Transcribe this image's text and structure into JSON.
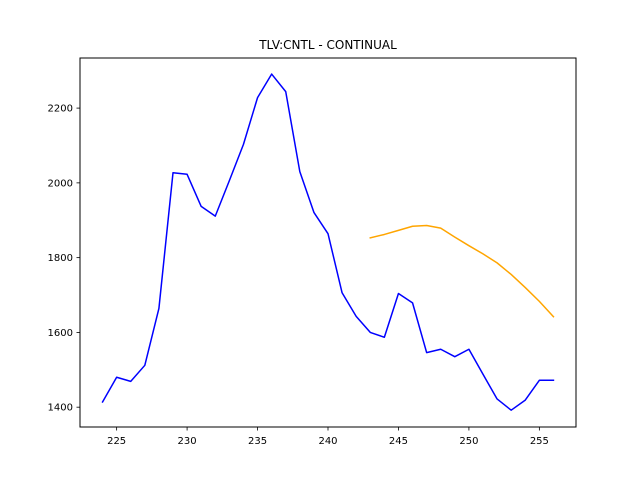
{
  "chart_data": {
    "type": "line",
    "title": "TLV:CNTL - CONTINUAL",
    "xlabel": "",
    "ylabel": "",
    "xlim": [
      222.4,
      257.6
    ],
    "ylim": [
      1347,
      2334
    ],
    "xticks": [
      225,
      230,
      235,
      240,
      245,
      250,
      255
    ],
    "yticks": [
      1400,
      1600,
      1800,
      2000,
      2200
    ],
    "grid": false,
    "series": [
      {
        "color": "#0000ff",
        "x": [
          224,
          225,
          226,
          227,
          228,
          229,
          230,
          231,
          232,
          233,
          234,
          235,
          236,
          237,
          238,
          239,
          240,
          241,
          242,
          243,
          244,
          245,
          246,
          247,
          248,
          249,
          250,
          251,
          252,
          253,
          254,
          255,
          256
        ],
        "y": [
          1414,
          1480,
          1469,
          1512,
          1664,
          2027,
          2023,
          1937,
          1911,
          2006,
          2103,
          2228,
          2291,
          2244,
          2030,
          1921,
          1864,
          1706,
          1643,
          1600,
          1587,
          1704,
          1679,
          1546,
          1555,
          1535,
          1555,
          1488,
          1422,
          1392,
          1419,
          1472,
          1472
        ]
      },
      {
        "color": "#ffa500",
        "x": [
          243,
          244,
          245,
          246,
          247,
          248,
          249,
          250,
          251,
          252,
          253,
          254,
          255,
          256
        ],
        "y": [
          1853,
          1862,
          1873,
          1884,
          1886,
          1879,
          1855,
          1832,
          1810,
          1786,
          1755,
          1720,
          1683,
          1642
        ]
      }
    ]
  }
}
